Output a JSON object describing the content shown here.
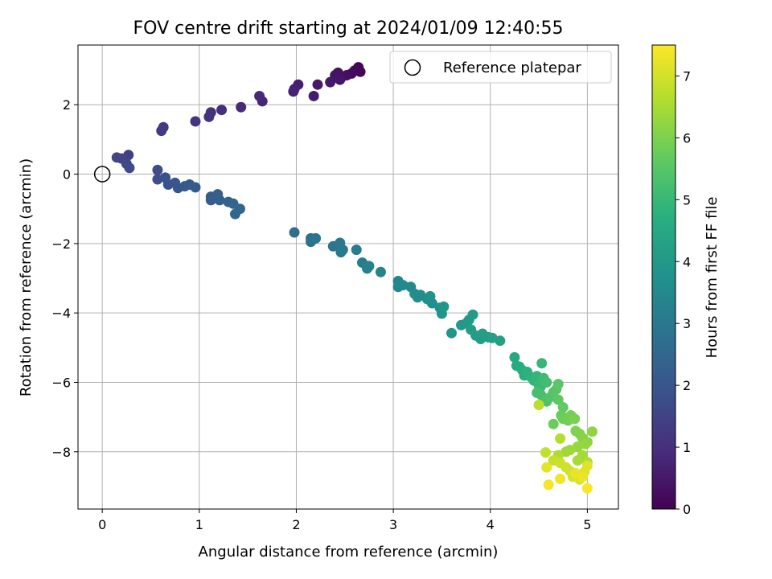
{
  "chart_data": {
    "type": "scatter",
    "title": "FOV centre drift starting at 2024/01/09 12:40:55",
    "xlabel": "Angular distance from reference (arcmin)",
    "ylabel": "Rotation from reference (arcmin)",
    "xlim": [
      -0.25,
      5.32
    ],
    "ylim": [
      -9.65,
      3.72
    ],
    "xticks": [
      0,
      1,
      2,
      3,
      4,
      5
    ],
    "xtick_labels": [
      "0",
      "1",
      "2",
      "3",
      "4",
      "5"
    ],
    "yticks": [
      2,
      0,
      -2,
      -4,
      -6,
      -8
    ],
    "ytick_labels": [
      "2",
      "0",
      "−2",
      "−4",
      "−6",
      "−8"
    ],
    "grid": true,
    "legend": {
      "placement": "top-right",
      "entries": [
        "Reference platepar"
      ]
    },
    "reference_point": {
      "x": 0,
      "y": 0,
      "label": "Reference platepar"
    },
    "colorbar": {
      "label": "Hours from first FF file",
      "colormap": "viridis",
      "range": [
        0,
        7.5
      ],
      "ticks": [
        0,
        1,
        2,
        3,
        4,
        5,
        6,
        7
      ],
      "tick_labels": [
        "0",
        "1",
        "2",
        "3",
        "4",
        "5",
        "6",
        "7"
      ]
    },
    "points": [
      [
        2.64,
        3.08,
        0.05
      ],
      [
        2.66,
        2.95,
        0.1
      ],
      [
        2.6,
        2.98,
        0.15
      ],
      [
        2.57,
        2.9,
        0.2
      ],
      [
        2.52,
        2.85,
        0.25
      ],
      [
        2.47,
        2.8,
        0.3
      ],
      [
        2.43,
        2.92,
        0.35
      ],
      [
        2.4,
        2.85,
        0.4
      ],
      [
        2.45,
        2.72,
        0.45
      ],
      [
        2.35,
        2.65,
        0.5
      ],
      [
        2.22,
        2.58,
        0.55
      ],
      [
        2.18,
        2.25,
        0.6
      ],
      [
        2.02,
        2.58,
        0.65
      ],
      [
        1.98,
        2.45,
        0.7
      ],
      [
        1.97,
        2.38,
        0.75
      ],
      [
        1.65,
        2.1,
        0.8
      ],
      [
        1.62,
        2.25,
        0.85
      ],
      [
        1.43,
        1.93,
        0.9
      ],
      [
        1.23,
        1.85,
        1.0
      ],
      [
        1.12,
        1.78,
        1.05
      ],
      [
        1.1,
        1.65,
        1.1
      ],
      [
        0.96,
        1.52,
        1.15
      ],
      [
        0.63,
        1.35,
        1.25
      ],
      [
        0.61,
        1.25,
        1.3
      ],
      [
        0.27,
        0.55,
        1.45
      ],
      [
        0.2,
        0.45,
        1.55
      ],
      [
        0.15,
        0.48,
        1.6
      ],
      [
        0.25,
        0.3,
        1.65
      ],
      [
        0.28,
        0.18,
        1.7
      ],
      [
        0.57,
        0.12,
        1.75
      ],
      [
        0.57,
        -0.15,
        1.8
      ],
      [
        0.65,
        -0.1,
        1.85
      ],
      [
        0.68,
        -0.3,
        1.9
      ],
      [
        0.75,
        -0.25,
        1.95
      ],
      [
        0.78,
        -0.4,
        2.0
      ],
      [
        0.85,
        -0.35,
        2.05
      ],
      [
        0.9,
        -0.3,
        2.1
      ],
      [
        0.96,
        -0.38,
        2.12
      ],
      [
        1.12,
        -0.65,
        2.15
      ],
      [
        1.12,
        -0.75,
        2.2
      ],
      [
        1.19,
        -0.58,
        2.25
      ],
      [
        1.21,
        -0.75,
        2.3
      ],
      [
        1.3,
        -0.8,
        2.35
      ],
      [
        1.35,
        -0.85,
        2.4
      ],
      [
        1.37,
        -1.15,
        2.45
      ],
      [
        1.42,
        -1.0,
        2.5
      ],
      [
        1.98,
        -1.68,
        2.7
      ],
      [
        2.15,
        -1.85,
        2.75
      ],
      [
        2.15,
        -1.95,
        2.8
      ],
      [
        2.2,
        -1.85,
        2.85
      ],
      [
        2.38,
        -2.08,
        2.9
      ],
      [
        2.45,
        -1.98,
        2.95
      ],
      [
        2.46,
        -2.25,
        3.0
      ],
      [
        2.48,
        -2.18,
        3.05
      ],
      [
        2.62,
        -2.18,
        3.1
      ],
      [
        2.68,
        -2.55,
        3.15
      ],
      [
        2.73,
        -2.72,
        3.2
      ],
      [
        2.75,
        -2.65,
        3.25
      ],
      [
        2.87,
        -2.82,
        3.3
      ],
      [
        3.05,
        -3.08,
        3.4
      ],
      [
        3.05,
        -3.25,
        3.45
      ],
      [
        3.1,
        -3.2,
        3.5
      ],
      [
        3.18,
        -3.25,
        3.55
      ],
      [
        3.22,
        -3.45,
        3.6
      ],
      [
        3.25,
        -3.55,
        3.62
      ],
      [
        3.28,
        -3.48,
        3.65
      ],
      [
        3.35,
        -3.6,
        3.7
      ],
      [
        3.4,
        -3.72,
        3.72
      ],
      [
        3.38,
        -3.52,
        3.75
      ],
      [
        3.48,
        -3.85,
        3.8
      ],
      [
        3.5,
        -4.02,
        3.85
      ],
      [
        3.52,
        -3.82,
        3.9
      ],
      [
        3.6,
        -4.58,
        3.95
      ],
      [
        3.7,
        -4.35,
        4.0
      ],
      [
        3.75,
        -4.3,
        4.02
      ],
      [
        3.78,
        -4.2,
        4.05
      ],
      [
        3.82,
        -4.05,
        4.08
      ],
      [
        3.8,
        -4.48,
        4.1
      ],
      [
        3.85,
        -4.65,
        4.12
      ],
      [
        3.9,
        -4.75,
        4.15
      ],
      [
        3.92,
        -4.6,
        4.18
      ],
      [
        3.98,
        -4.7,
        4.2
      ],
      [
        4.02,
        -4.72,
        4.22
      ],
      [
        4.1,
        -4.8,
        4.25
      ],
      [
        4.25,
        -5.28,
        4.5
      ],
      [
        4.27,
        -5.52,
        4.55
      ],
      [
        4.3,
        -5.55,
        4.6
      ],
      [
        4.33,
        -5.65,
        4.65
      ],
      [
        4.35,
        -5.8,
        4.7
      ],
      [
        4.38,
        -5.7,
        4.75
      ],
      [
        4.42,
        -5.85,
        4.8
      ],
      [
        4.45,
        -5.95,
        4.85
      ],
      [
        4.48,
        -5.82,
        4.9
      ],
      [
        4.53,
        -5.45,
        4.95
      ],
      [
        4.5,
        -6.08,
        5.0
      ],
      [
        4.52,
        -6.12,
        5.05
      ],
      [
        4.55,
        -5.88,
        5.1
      ],
      [
        4.58,
        -6.0,
        5.15
      ],
      [
        4.48,
        -6.3,
        5.2
      ],
      [
        4.52,
        -6.35,
        5.25
      ],
      [
        4.55,
        -6.45,
        5.3
      ],
      [
        4.58,
        -6.55,
        5.35
      ],
      [
        4.62,
        -6.42,
        5.4
      ],
      [
        4.65,
        -6.28,
        5.45
      ],
      [
        4.68,
        -6.2,
        5.5
      ],
      [
        4.7,
        -6.05,
        5.55
      ],
      [
        4.7,
        -6.5,
        5.6
      ],
      [
        4.75,
        -6.72,
        5.65
      ],
      [
        4.73,
        -6.95,
        5.7
      ],
      [
        4.65,
        -7.2,
        5.75
      ],
      [
        4.75,
        -7.05,
        5.8
      ],
      [
        4.8,
        -7.1,
        5.85
      ],
      [
        4.83,
        -6.95,
        5.9
      ],
      [
        4.87,
        -7.05,
        5.95
      ],
      [
        4.88,
        -7.4,
        6.0
      ],
      [
        4.92,
        -7.48,
        6.05
      ],
      [
        4.95,
        -7.6,
        6.1
      ],
      [
        5.0,
        -7.72,
        6.15
      ],
      [
        5.05,
        -7.42,
        6.2
      ],
      [
        4.98,
        -7.78,
        6.25
      ],
      [
        4.9,
        -7.85,
        6.3
      ],
      [
        4.82,
        -7.95,
        6.35
      ],
      [
        4.78,
        -8.0,
        6.4
      ],
      [
        4.95,
        -8.1,
        6.45
      ],
      [
        4.9,
        -8.25,
        6.5
      ],
      [
        5.0,
        -8.3,
        6.55
      ],
      [
        4.7,
        -8.1,
        6.6
      ],
      [
        4.72,
        -7.62,
        6.65
      ],
      [
        4.5,
        -6.65,
        6.7
      ],
      [
        4.57,
        -8.02,
        6.8
      ],
      [
        4.65,
        -8.25,
        6.85
      ],
      [
        4.72,
        -8.32,
        6.9
      ],
      [
        4.78,
        -8.45,
        6.95
      ],
      [
        4.82,
        -8.55,
        7.0
      ],
      [
        4.85,
        -8.72,
        7.05
      ],
      [
        4.92,
        -8.8,
        7.1
      ],
      [
        4.97,
        -8.58,
        7.12
      ],
      [
        5.0,
        -8.4,
        7.15
      ],
      [
        4.58,
        -8.45,
        7.2
      ],
      [
        4.88,
        -8.62,
        7.25
      ],
      [
        4.95,
        -8.72,
        7.3
      ],
      [
        4.72,
        -8.78,
        7.35
      ],
      [
        4.6,
        -8.95,
        7.4
      ],
      [
        5.0,
        -9.05,
        7.45
      ]
    ]
  }
}
